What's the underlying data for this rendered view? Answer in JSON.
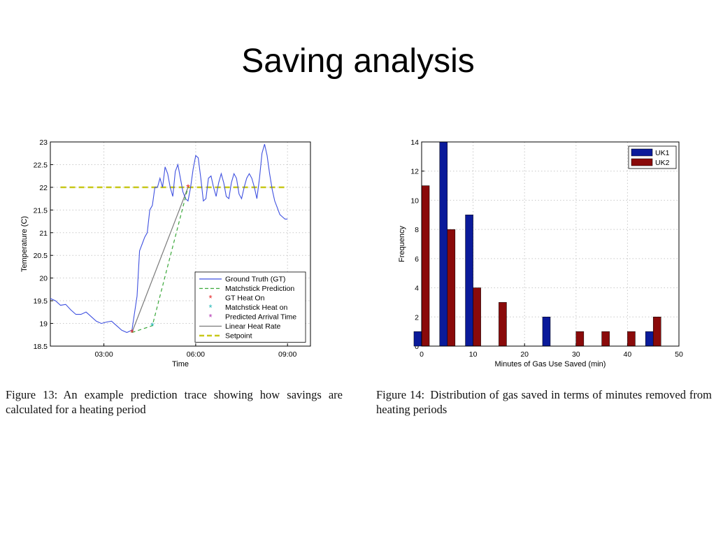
{
  "slide": {
    "title": "Saving analysis"
  },
  "chart_data": [
    {
      "type": "line",
      "xlabel": "Time",
      "ylabel": "Temperature (C)",
      "xlim": [
        "01:15",
        "09:45"
      ],
      "ylim": [
        18.5,
        23
      ],
      "xticks": [
        "03:00",
        "06:00",
        "09:00"
      ],
      "yticks": [
        "18.5",
        "19",
        "19.5",
        "20",
        "20.5",
        "21",
        "21.5",
        "22",
        "22.5",
        "23"
      ],
      "grid": true,
      "legend_position": "bottom-right",
      "series": [
        {
          "name": "Ground Truth (GT)",
          "style": "line",
          "color": "#3f51e0",
          "x": [
            "01:15",
            "01:25",
            "01:35",
            "01:45",
            "01:55",
            "02:05",
            "02:15",
            "02:25",
            "02:35",
            "02:45",
            "02:55",
            "03:05",
            "03:15",
            "03:25",
            "03:35",
            "03:45",
            "03:55",
            "04:05",
            "04:10",
            "04:15",
            "04:20",
            "04:25",
            "04:30",
            "04:35",
            "04:40",
            "04:45",
            "04:50",
            "04:55",
            "05:00",
            "05:05",
            "05:10",
            "05:15",
            "05:20",
            "05:25",
            "05:30",
            "05:35",
            "05:40",
            "05:45",
            "05:50",
            "05:55",
            "06:00",
            "06:05",
            "06:10",
            "06:15",
            "06:20",
            "06:25",
            "06:30",
            "06:35",
            "06:40",
            "06:45",
            "06:50",
            "06:55",
            "07:00",
            "07:05",
            "07:10",
            "07:15",
            "07:20",
            "07:25",
            "07:30",
            "07:35",
            "07:40",
            "07:45",
            "07:50",
            "07:55",
            "08:00",
            "08:05",
            "08:10",
            "08:15",
            "08:20",
            "08:25",
            "08:30",
            "08:35",
            "08:40",
            "08:45",
            "08:50",
            "08:55",
            "09:00"
          ],
          "values": [
            19.55,
            19.5,
            19.4,
            19.42,
            19.3,
            19.2,
            19.2,
            19.25,
            19.15,
            19.05,
            19.0,
            19.03,
            19.05,
            18.95,
            18.85,
            18.8,
            18.85,
            19.6,
            20.6,
            20.75,
            20.9,
            21.0,
            21.5,
            21.6,
            22.0,
            22.0,
            22.2,
            22.0,
            22.45,
            22.3,
            22.0,
            21.8,
            22.35,
            22.5,
            22.2,
            21.9,
            21.75,
            21.7,
            22.0,
            22.4,
            22.7,
            22.65,
            22.2,
            21.7,
            21.75,
            22.2,
            22.25,
            22.0,
            21.8,
            22.1,
            22.3,
            22.1,
            21.8,
            21.75,
            22.1,
            22.3,
            22.2,
            21.85,
            21.75,
            22.0,
            22.2,
            22.3,
            22.2,
            22.0,
            21.75,
            22.2,
            22.75,
            22.95,
            22.7,
            22.3,
            21.95,
            21.7,
            21.55,
            21.4,
            21.35,
            21.3,
            21.3
          ]
        },
        {
          "name": "Matchstick Prediction",
          "style": "dashed",
          "color": "#3aa83a",
          "x": [
            "03:55",
            "04:35",
            "05:45"
          ],
          "values": [
            18.8,
            18.95,
            22.0
          ]
        },
        {
          "name": "GT Heat On",
          "style": "marker",
          "color": "#e52020",
          "x": [
            "03:55",
            "05:45"
          ],
          "values": [
            18.8,
            22.0
          ]
        },
        {
          "name": "Matchstick Heat on",
          "style": "marker",
          "color": "#22b8b8",
          "x": [
            "04:35"
          ],
          "values": [
            18.95
          ]
        },
        {
          "name": "Predicted Arrival Time",
          "style": "marker",
          "color": "#b030b0",
          "x": [],
          "values": []
        },
        {
          "name": "Linear Heat Rate",
          "style": "line",
          "color": "#7a7a7a",
          "x": [
            "03:55",
            "05:45"
          ],
          "values": [
            18.8,
            22.0
          ]
        },
        {
          "name": "Setpoint",
          "style": "thick-dashed",
          "color": "#c8c81a",
          "x": [
            "01:35",
            "08:55"
          ],
          "values": [
            22,
            22
          ]
        }
      ]
    },
    {
      "type": "bar",
      "xlabel": "Minutes of Gas Use Saved (min)",
      "ylabel": "Frequency",
      "xlim": [
        0,
        50
      ],
      "ylim": [
        0,
        14
      ],
      "xticks": [
        "0",
        "10",
        "20",
        "30",
        "40",
        "50"
      ],
      "yticks": [
        "0",
        "2",
        "4",
        "6",
        "8",
        "10",
        "12",
        "14"
      ],
      "grid": true,
      "legend_position": "top-right",
      "categories": [
        0,
        5,
        10,
        15,
        20,
        25,
        30,
        35,
        40,
        45
      ],
      "series": [
        {
          "name": "UK1",
          "color": "#0a1a9a",
          "values": [
            1,
            14,
            9,
            0,
            0,
            2,
            0,
            0,
            0,
            1
          ]
        },
        {
          "name": "UK2",
          "color": "#8a0a0a",
          "values": [
            11,
            8,
            4,
            3,
            0,
            0,
            1,
            1,
            1,
            2
          ]
        }
      ]
    }
  ],
  "captions": [
    {
      "label": "Figure 13:",
      "text": "An example prediction trace showing how savings are calculated for a heating period"
    },
    {
      "label": "Figure 14:",
      "text": "Distribution of gas saved in terms of minutes removed from heating periods"
    }
  ]
}
